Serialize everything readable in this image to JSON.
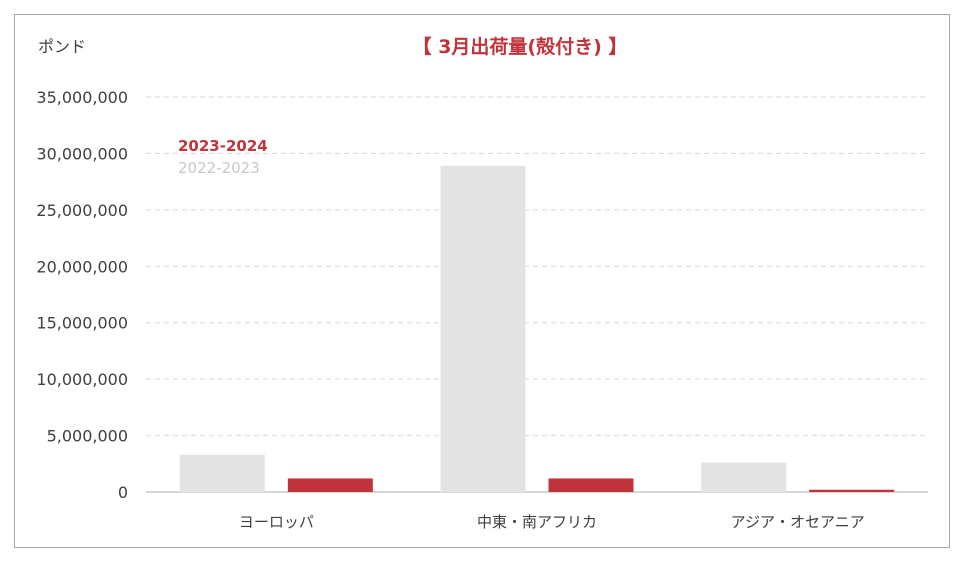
{
  "chart_data": {
    "type": "bar",
    "title": "【 3月出荷量(殻付き) 】",
    "unit_label": "ポンド",
    "categories": [
      "ヨーロッパ",
      "中東・南アフリカ",
      "アジア・オセアニア"
    ],
    "series": [
      {
        "name": "2022-2023",
        "color": "#e3e3e3",
        "values": [
          3300000,
          28900000,
          2600000
        ]
      },
      {
        "name": "2023-2024",
        "color": "#c0343b",
        "values": [
          1200000,
          1200000,
          200000
        ]
      }
    ],
    "legend_order": [
      "2023-2024",
      "2022-2023"
    ],
    "legend_position": "top-left",
    "ylim": [
      0,
      35000000
    ],
    "yticks": [
      0,
      5000000,
      10000000,
      15000000,
      20000000,
      25000000,
      30000000,
      35000000
    ],
    "ytick_labels": [
      "0",
      "5,000,000",
      "10,000,000",
      "15,000,000",
      "20,000,000",
      "25,000,000",
      "30,000,000",
      "35,000,000"
    ],
    "grid": "dashed-horizontal"
  }
}
